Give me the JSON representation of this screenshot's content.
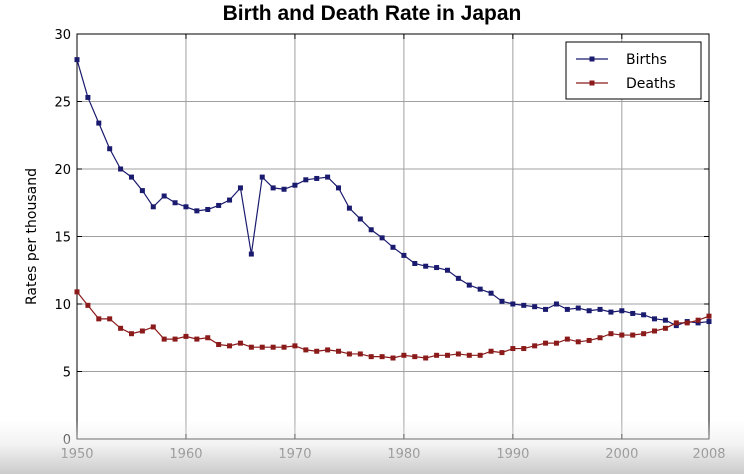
{
  "chart_data": {
    "type": "line",
    "title": "Birth and Death Rate in Japan",
    "xlabel": "",
    "ylabel": "Rates per thousand",
    "xlim": [
      1950,
      2008
    ],
    "ylim": [
      0,
      30
    ],
    "xticks": [
      1950,
      1960,
      1970,
      1980,
      1990,
      2000,
      2008
    ],
    "yticks": [
      0,
      5,
      10,
      15,
      20,
      25,
      30
    ],
    "grid": true,
    "legend_position": "top-right",
    "x": [
      1950,
      1951,
      1952,
      1953,
      1954,
      1955,
      1956,
      1957,
      1958,
      1959,
      1960,
      1961,
      1962,
      1963,
      1964,
      1965,
      1966,
      1967,
      1968,
      1969,
      1970,
      1971,
      1972,
      1973,
      1974,
      1975,
      1976,
      1977,
      1978,
      1979,
      1980,
      1981,
      1982,
      1983,
      1984,
      1985,
      1986,
      1987,
      1988,
      1989,
      1990,
      1991,
      1992,
      1993,
      1994,
      1995,
      1996,
      1997,
      1998,
      1999,
      2000,
      2001,
      2002,
      2003,
      2004,
      2005,
      2006,
      2007,
      2008
    ],
    "series": [
      {
        "name": "Births",
        "color": "#1a1a6e",
        "values": [
          28.1,
          25.3,
          23.4,
          21.5,
          20.0,
          19.4,
          18.4,
          17.2,
          18.0,
          17.5,
          17.2,
          16.9,
          17.0,
          17.3,
          17.7,
          18.6,
          13.7,
          19.4,
          18.6,
          18.5,
          18.8,
          19.2,
          19.3,
          19.4,
          18.6,
          17.1,
          16.3,
          15.5,
          14.9,
          14.2,
          13.6,
          13.0,
          12.8,
          12.7,
          12.5,
          11.9,
          11.4,
          11.1,
          10.8,
          10.2,
          10.0,
          9.9,
          9.8,
          9.6,
          10.0,
          9.6,
          9.7,
          9.5,
          9.6,
          9.4,
          9.5,
          9.3,
          9.2,
          8.9,
          8.8,
          8.4,
          8.7,
          8.6,
          8.7
        ]
      },
      {
        "name": "Deaths",
        "color": "#8b1a1a",
        "values": [
          10.9,
          9.9,
          8.9,
          8.9,
          8.2,
          7.8,
          8.0,
          8.3,
          7.4,
          7.4,
          7.6,
          7.4,
          7.5,
          7.0,
          6.9,
          7.1,
          6.8,
          6.8,
          6.8,
          6.8,
          6.9,
          6.6,
          6.5,
          6.6,
          6.5,
          6.3,
          6.3,
          6.1,
          6.1,
          6.0,
          6.2,
          6.1,
          6.0,
          6.2,
          6.2,
          6.3,
          6.2,
          6.2,
          6.5,
          6.4,
          6.7,
          6.7,
          6.9,
          7.1,
          7.1,
          7.4,
          7.2,
          7.3,
          7.5,
          7.8,
          7.7,
          7.7,
          7.8,
          8.0,
          8.2,
          8.6,
          8.6,
          8.8,
          9.1
        ]
      }
    ]
  }
}
